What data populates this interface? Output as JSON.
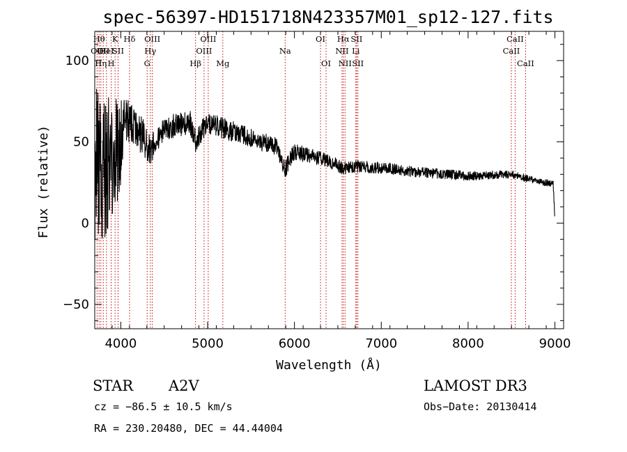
{
  "chart_data": {
    "type": "line",
    "title": "spec-56397-HD151718N423357M01_sp12-127.fits",
    "xlabel": "Wavelength (Å)",
    "ylabel": "Flux (relative)",
    "xlim": [
      3700,
      9100
    ],
    "ylim": [
      -65,
      118
    ],
    "xticks": [
      4000,
      5000,
      6000,
      7000,
      8000,
      9000
    ],
    "xtick_labels": [
      "4000",
      "5000",
      "6000",
      "7000",
      "8000",
      "9000"
    ],
    "yticks": [
      -50,
      0,
      50,
      100
    ],
    "ytick_labels": [
      "−50",
      "0",
      "50",
      "100"
    ],
    "spectrum_anchor_points": [
      {
        "x": 3700,
        "y": 0
      },
      {
        "x": 3720,
        "y": 40
      },
      {
        "x": 3760,
        "y": 30
      },
      {
        "x": 3850,
        "y": 40
      },
      {
        "x": 3950,
        "y": 45
      },
      {
        "x": 4000,
        "y": 52
      },
      {
        "x": 4050,
        "y": 62
      },
      {
        "x": 4150,
        "y": 58
      },
      {
        "x": 4250,
        "y": 54
      },
      {
        "x": 4340,
        "y": 44
      },
      {
        "x": 4400,
        "y": 52
      },
      {
        "x": 4600,
        "y": 60
      },
      {
        "x": 4800,
        "y": 62
      },
      {
        "x": 4861,
        "y": 50
      },
      {
        "x": 5000,
        "y": 62
      },
      {
        "x": 5200,
        "y": 58
      },
      {
        "x": 5500,
        "y": 52
      },
      {
        "x": 5800,
        "y": 47
      },
      {
        "x": 5890,
        "y": 33
      },
      {
        "x": 6000,
        "y": 44
      },
      {
        "x": 6200,
        "y": 41
      },
      {
        "x": 6400,
        "y": 38
      },
      {
        "x": 6563,
        "y": 34
      },
      {
        "x": 6700,
        "y": 35
      },
      {
        "x": 7000,
        "y": 34
      },
      {
        "x": 7500,
        "y": 31
      },
      {
        "x": 8000,
        "y": 29
      },
      {
        "x": 8500,
        "y": 30
      },
      {
        "x": 8700,
        "y": 27
      },
      {
        "x": 8980,
        "y": 24
      },
      {
        "x": 9000,
        "y": 2
      }
    ],
    "noise_amplitude": [
      {
        "x": 3700,
        "a": 50
      },
      {
        "x": 3950,
        "a": 40
      },
      {
        "x": 4050,
        "a": 16
      },
      {
        "x": 4400,
        "a": 8
      },
      {
        "x": 5500,
        "a": 6
      },
      {
        "x": 6500,
        "a": 4
      },
      {
        "x": 9000,
        "a": 2
      }
    ],
    "line_markers": [
      {
        "x": 3727,
        "row": 1,
        "label": "OII"
      },
      {
        "x": 3750,
        "row": 0,
        "label": "Hθ"
      },
      {
        "x": 3770,
        "row": 2,
        "label": "Hη"
      },
      {
        "x": 3798,
        "row": 1,
        "label": "OII"
      },
      {
        "x": 3835,
        "row": 1,
        "label": "HeI"
      },
      {
        "x": 3889,
        "row": 2,
        "label": "H"
      },
      {
        "x": 3934,
        "row": 0,
        "label": "K"
      },
      {
        "x": 3969,
        "row": 1,
        "label": "SII"
      },
      {
        "x": 4101,
        "row": 0,
        "label": "Hδ"
      },
      {
        "x": 4304,
        "row": 2,
        "label": "G"
      },
      {
        "x": 4340,
        "row": 1,
        "label": "Hγ"
      },
      {
        "x": 4363,
        "row": 0,
        "label": "OIII"
      },
      {
        "x": 4861,
        "row": 2,
        "label": "Hβ"
      },
      {
        "x": 4959,
        "row": 1,
        "label": "OIII"
      },
      {
        "x": 5007,
        "row": 0,
        "label": "OIII"
      },
      {
        "x": 5175,
        "row": 2,
        "label": "Mg"
      },
      {
        "x": 5893,
        "row": 1,
        "label": "Na"
      },
      {
        "x": 6300,
        "row": 0,
        "label": "OI"
      },
      {
        "x": 6364,
        "row": 2,
        "label": "OI"
      },
      {
        "x": 6548,
        "row": 1,
        "label": "NII"
      },
      {
        "x": 6563,
        "row": 0,
        "label": "Hα"
      },
      {
        "x": 6583,
        "row": 2,
        "label": "NII"
      },
      {
        "x": 6707,
        "row": 1,
        "label": "Li"
      },
      {
        "x": 6716,
        "row": 0,
        "label": "SII"
      },
      {
        "x": 6731,
        "row": 2,
        "label": "SII"
      },
      {
        "x": 8498,
        "row": 1,
        "label": "CaII"
      },
      {
        "x": 8542,
        "row": 0,
        "label": "CaII"
      },
      {
        "x": 8662,
        "row": 2,
        "label": "CaII"
      }
    ]
  },
  "info": {
    "object_class": "STAR",
    "subclass": "A2V",
    "survey": "LAMOST DR3",
    "redshift_text": "cz = −86.5 ± 10.5 km/s",
    "obs_date_text": "Obs−Date: 20130414",
    "coords_text": "RA = 230.20480, DEC =  44.44004"
  }
}
